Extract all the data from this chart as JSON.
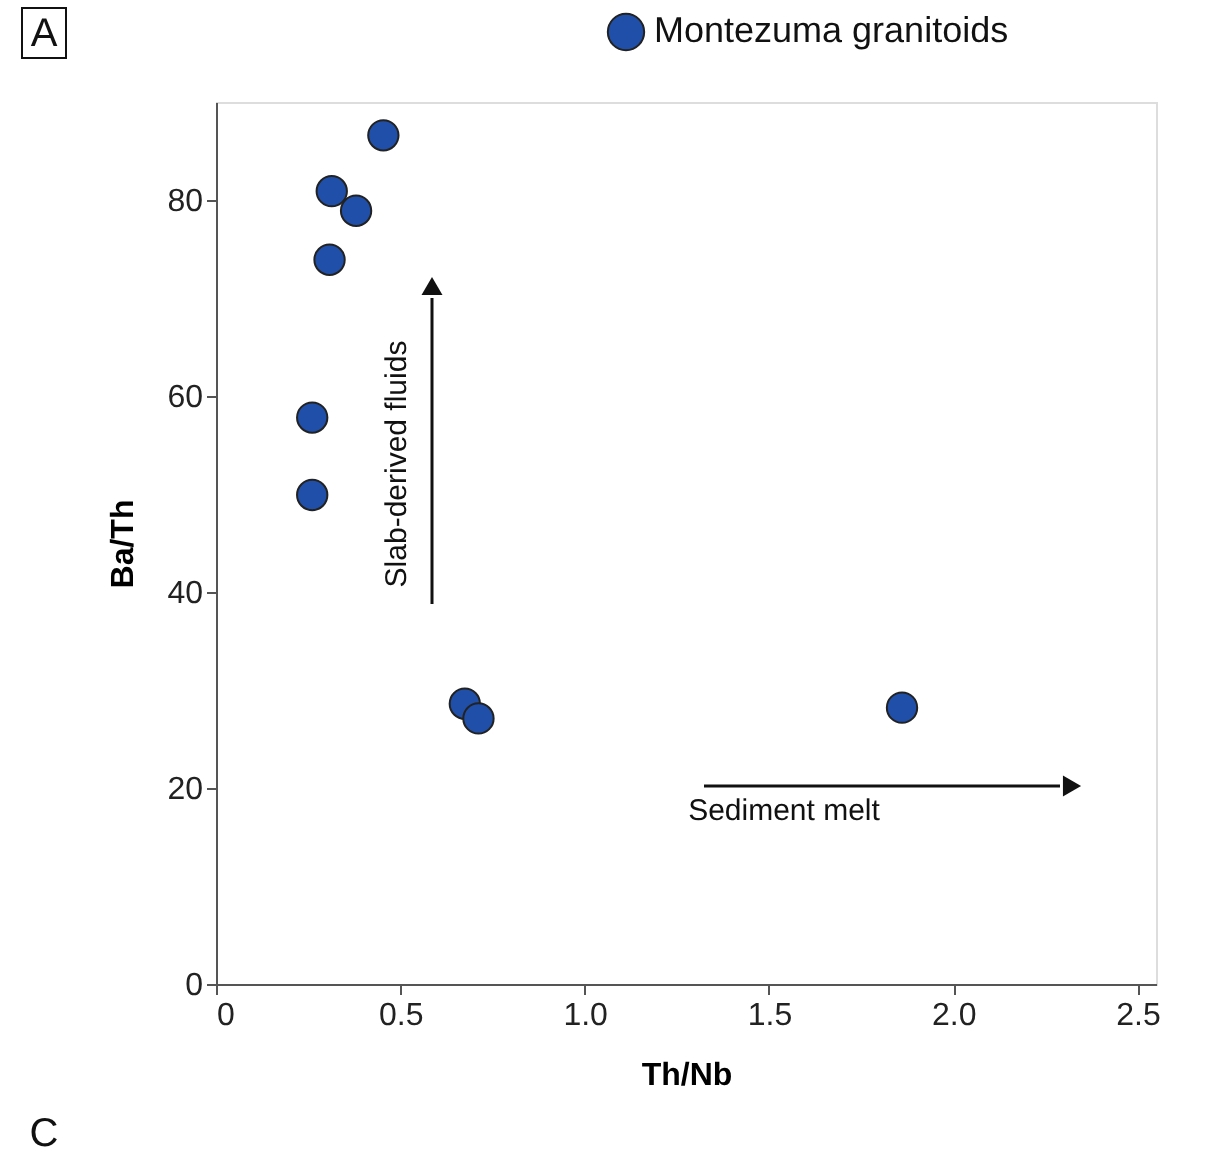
{
  "chart_data": {
    "type": "scatter",
    "xlabel": "Th/Nb",
    "ylabel": "Ba/Th",
    "x": [
      0.454,
      0.314,
      0.38,
      0.308,
      0.261,
      0.261,
      0.675,
      0.712,
      1.861
    ],
    "series": [
      {
        "name": "Montezuma granitoids",
        "color": "#1f4fa8",
        "values": [
          86.6,
          80.9,
          78.9,
          73.9,
          57.8,
          49.9,
          28.6,
          27.1,
          28.2
        ]
      }
    ],
    "xlim": [
      0,
      2.55
    ],
    "xticks": [
      {
        "value": 0,
        "label": "0"
      },
      {
        "value": 0.5,
        "label": "0.5"
      },
      {
        "value": 1,
        "label": "1.0"
      },
      {
        "value": 1.5,
        "label": "1.5"
      },
      {
        "value": 2,
        "label": "2.0"
      },
      {
        "value": 2.5,
        "label": "2.5"
      }
    ],
    "ylim": [
      0,
      90
    ],
    "yticks": [
      0,
      20,
      40,
      60,
      80
    ],
    "annotations": [
      "Slab-derived fluids",
      "Sediment melt",
      "A",
      "C"
    ],
    "grid": false,
    "legend": "top right",
    "marker": "circle"
  }
}
